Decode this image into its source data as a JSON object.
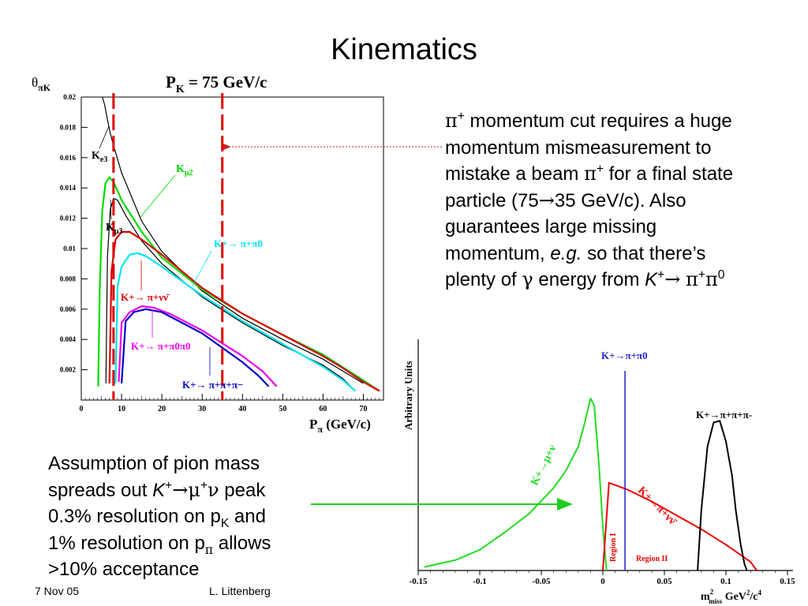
{
  "slide": {
    "title": "Kinematics",
    "footer_date": "7 Nov 05",
    "footer_author": "L. Littenberg"
  },
  "text_right": {
    "l1": " momentum cut requires a huge",
    "l2": "momentum mismeasurement to",
    "l3a": "mistake a beam ",
    "l3b": " for a final state",
    "l4a": "particle (75",
    "l4b": "35 GeV/c).  Also",
    "l5": "guarantees large missing",
    "l6a": "momentum, ",
    "l6b": "e.g.",
    "l6c": " so that there’s",
    "l7a": "plenty of ",
    "l7b": " energy from ",
    "l7c": "K",
    "sym_pi": "π",
    "sym_arrow": "→",
    "sym_gamma": "γ",
    "sup_plus": "+",
    "sup_zero": "0"
  },
  "text_left": {
    "l1": "Assumption of pion mass",
    "l2a": "spreads out ",
    "l2b": "K",
    "l2c": " peak",
    "l3a": "0.3% resolution on p",
    "l3b": "K",
    "l3c": " and",
    "l4a": "1% resolution on p",
    "l4b": " allows",
    "l5": ">10% acceptance",
    "sym_mu": "μ",
    "sym_nu": "ν",
    "sym_arrow": "→",
    "sym_pi": "π",
    "sup_plus": "+"
  },
  "chart_data": [
    {
      "type": "line",
      "title": "P_K = 75 GeV/c",
      "title_main": "P",
      "title_sub": "K",
      "title_rest": " = 75 GeV/c",
      "ylabel": "θπK",
      "xlabel": "Pπ (GeV/c)",
      "ylabel_main": "θ",
      "ylabel_sub": "πK",
      "xlabel_main": "P",
      "xlabel_sub": "π",
      "xlabel_rest": " (GeV/c)",
      "xlim": [
        0,
        75
      ],
      "ylim": [
        0,
        0.02
      ],
      "x_ticks": [
        0,
        10,
        20,
        30,
        40,
        50,
        60,
        70
      ],
      "y_ticks": [
        "0.002",
        "0.004",
        "0.006",
        "0.008",
        "0.01",
        "0.012",
        "0.014",
        "0.016",
        "0.018",
        "0.02"
      ],
      "cut_lines_x": [
        8,
        35
      ],
      "series": [
        {
          "name": "Ke3",
          "color": "#000000",
          "x": [
            5.2,
            5.8,
            6.5,
            7.2,
            8,
            10,
            15,
            20,
            30,
            40,
            50,
            60,
            65,
            70
          ],
          "y": [
            0.0205,
            0.0195,
            0.0185,
            0.0176,
            0.0168,
            0.015,
            0.0118,
            0.0098,
            0.0072,
            0.0054,
            0.004,
            0.0027,
            0.0019,
            0.0011
          ]
        },
        {
          "name": "Kμ2",
          "color": "#00dd00",
          "x": [
            4.2,
            4.6,
            5.2,
            6,
            7,
            8,
            10,
            15,
            20,
            30,
            40,
            50,
            60,
            70,
            74
          ],
          "y": [
            0.0009,
            0.0075,
            0.0125,
            0.0143,
            0.0147,
            0.0144,
            0.0132,
            0.0111,
            0.0094,
            0.0073,
            0.0057,
            0.0043,
            0.003,
            0.0013,
            0.0006
          ]
        },
        {
          "name": "Kμ3",
          "color": "#000000",
          "x": [
            6.1,
            6.5,
            7.2,
            8,
            9,
            11,
            15,
            20,
            30,
            40,
            50,
            60,
            65,
            68
          ],
          "y": [
            0.0011,
            0.0095,
            0.0126,
            0.0133,
            0.0132,
            0.0122,
            0.0105,
            0.009,
            0.0068,
            0.0051,
            0.0036,
            0.0023,
            0.0014,
            0.0006
          ]
        },
        {
          "name": "K+ → π+π0",
          "color": "#00e5ee",
          "x": [
            8.5,
            9,
            10,
            12,
            14,
            16,
            20,
            30,
            40,
            50,
            60,
            65,
            68
          ],
          "y": [
            0.0011,
            0.0075,
            0.0088,
            0.0096,
            0.0097,
            0.0095,
            0.0088,
            0.0069,
            0.0052,
            0.0037,
            0.0022,
            0.0013,
            0.0006
          ]
        },
        {
          "name": "K+ → π+νν̄",
          "color": "#dd0000",
          "x": [
            7,
            7.5,
            8.5,
            10,
            12,
            15,
            20,
            30,
            40,
            50,
            60,
            65,
            70,
            74
          ],
          "y": [
            0.0011,
            0.0085,
            0.0106,
            0.0111,
            0.0111,
            0.0106,
            0.0096,
            0.0074,
            0.0057,
            0.0043,
            0.0029,
            0.0021,
            0.0012,
            0.0006
          ]
        },
        {
          "name": "K+ → π+π0π0",
          "color": "#ee00ee",
          "x": [
            9.3,
            10,
            12,
            15,
            18,
            22,
            30,
            40,
            45,
            48.5
          ],
          "y": [
            0.0012,
            0.0051,
            0.0058,
            0.0062,
            0.0061,
            0.0057,
            0.0046,
            0.0029,
            0.0019,
            0.0009
          ]
        },
        {
          "name": "K+ → π+π+π−",
          "color": "#0000cc",
          "x": [
            10,
            11,
            13,
            16,
            20,
            30,
            40,
            44,
            46.5
          ],
          "y": [
            0.0011,
            0.0052,
            0.0058,
            0.006,
            0.0058,
            0.0044,
            0.0025,
            0.0016,
            0.0009
          ]
        }
      ],
      "labels": {
        "ke3_main": "K",
        "ke3_sub": "e3",
        "kmu2_main": "K",
        "kmu2_sub": "μ2",
        "kmu3_main": "K",
        "kmu3_sub": "μ3",
        "pipi0": "K+→ π+π0",
        "pinunu": "K+→ π+νν̄",
        "pipi0pi0": "K+→ π+π0π0",
        "pipipi": "K+→ π+π+π−"
      }
    },
    {
      "type": "line",
      "ylabel": "Arbitrary Units",
      "xlabel": "m²miss GeV²/c⁴",
      "xlabel_m": "m",
      "xlabel_sup": "2",
      "xlabel_sub": "miss",
      "xlabel_rest": " GeV",
      "xlabel_sup2": "2",
      "xlabel_rest2": "/c",
      "xlabel_sup3": "4",
      "xlim": [
        -0.15,
        0.15
      ],
      "x_ticks": [
        "-0.15",
        "-0.1",
        "-0.05",
        "0",
        "0.05",
        "0.1",
        "0.15"
      ],
      "x_tick_values": [
        -0.15,
        -0.1,
        -0.05,
        0,
        0.05,
        0.1,
        0.15
      ],
      "pipi0_line_x": 0.018,
      "series": [
        {
          "name": "K+→μ+ν",
          "color": "#22dd22",
          "x": [
            -0.145,
            -0.12,
            -0.1,
            -0.08,
            -0.06,
            -0.04,
            -0.03,
            -0.02,
            -0.015,
            -0.01,
            -0.007,
            -0.003,
            0.0,
            0.003
          ],
          "y": [
            0.02,
            0.06,
            0.12,
            0.22,
            0.33,
            0.48,
            0.58,
            0.72,
            0.85,
            1.0,
            0.96,
            0.6,
            0.25,
            0.0
          ]
        },
        {
          "name": "K+→π+νν̄",
          "color": "#ee0000",
          "x": [
            0.0,
            0.005,
            0.02,
            0.04,
            0.06,
            0.08,
            0.1,
            0.12,
            0.125
          ],
          "y": [
            0.0,
            0.51,
            0.47,
            0.4,
            0.32,
            0.24,
            0.15,
            0.05,
            0.0
          ]
        },
        {
          "name": "K+→π+π+π-",
          "color": "#000000",
          "x": [
            0.077,
            0.08,
            0.085,
            0.09,
            0.095,
            0.1,
            0.105,
            0.108,
            0.112,
            0.115,
            0.117
          ],
          "y": [
            0.0,
            0.35,
            0.72,
            0.86,
            0.87,
            0.75,
            0.55,
            0.35,
            0.15,
            0.04,
            0.0
          ]
        }
      ],
      "labels": {
        "pipi0": "K+→π+π0",
        "pipipi": "K+→π+π+π-",
        "munu": "K+→μ+ν",
        "pinunu": "K+→π+νν̄",
        "region1": "Region I",
        "region2": "Region II"
      }
    }
  ],
  "colors": {
    "cut": "#dd0000",
    "kmu2": "#00dd00",
    "pipi0": "#00e5ee",
    "pinunu": "#dd0000",
    "pipi0pi0": "#ee00ee",
    "pipipi": "#0000cc",
    "arrow_green": "#22cc22",
    "arrow_red": "#cc2222"
  }
}
